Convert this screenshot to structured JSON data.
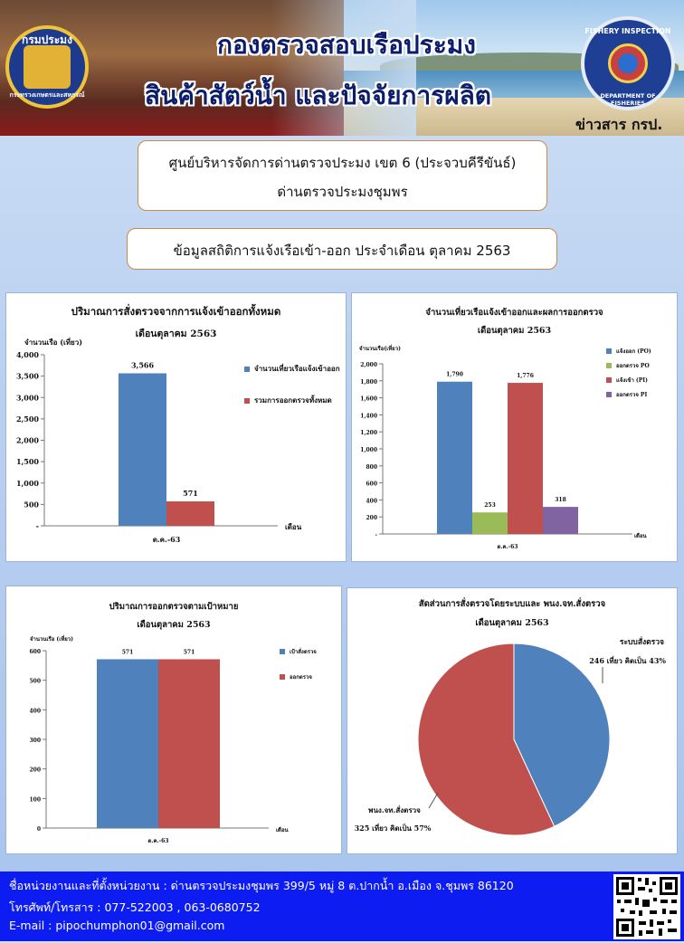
{
  "header": {
    "logo_left_text_top": "กรมประมง",
    "logo_left_text_bottom": "กระทรวงเกษตรและสหกรณ์",
    "title_line1": "กองตรวจสอบเรือประมง",
    "title_line2": "สินค้าสัตว์น้ำ และปัจจัยการผลิต",
    "logo_right_text_top": "FISHERY INSPECTION",
    "logo_right_text_bottom": "DEPARTMENT OF FISHERIES",
    "news_label": "ข่าวสาร กรป."
  },
  "office": {
    "line1": "ศูนย์บริหารจัดการด่านตรวจประมง เขต 6 (ประจวบคีรีขันธ์)",
    "line2": "ด่านตรวจประมงชุมพร"
  },
  "subtitle": "ข้อมูลสถิติการแจ้งเรือเข้า-ออก ประจำเดือน ตุลาคม 2563",
  "chart_data": [
    {
      "type": "bar",
      "title": "ปริมาณการสั่งตรวจจากการแจ้งเข้าออกทั้งหมด",
      "subtitle": "เดือนตุลาคม 2563",
      "ylabel": "จำนวนเรือ (เที่ยว)",
      "xlabel": "เดือน",
      "categories": [
        "ต.ค.-63"
      ],
      "series": [
        {
          "name": "จำนวนเที่ยวเรือแจ้งเข้าออก",
          "values": [
            3566
          ],
          "color": "#4f81bd"
        },
        {
          "name": "รวมการออกตรวจทั้งหมด",
          "values": [
            571
          ],
          "color": "#c0504d"
        }
      ],
      "ylim": [
        0,
        4000
      ],
      "yticks": [
        "-",
        "500",
        "1,000",
        "1,500",
        "2,000",
        "2,500",
        "3,000",
        "3,500",
        "4,000"
      ],
      "data_labels": [
        "3,566",
        "571"
      ],
      "legend": "right"
    },
    {
      "type": "bar",
      "title": "จำนวนเที่ยวเรือแจ้งเข้าออกและผลการออกตรวจ",
      "subtitle": "เดือนตุลาคม 2563",
      "ylabel": "จำนวนเรือ(เที่ยว)",
      "xlabel": "เดือน",
      "categories": [
        "ต.ค.-63"
      ],
      "series": [
        {
          "name": "แจ้งออก (PO)",
          "values": [
            1790
          ],
          "color": "#4f81bd"
        },
        {
          "name": "ออกตรวจ PO",
          "values": [
            253
          ],
          "color": "#9bbb59"
        },
        {
          "name": "แจ้งเข้า (PI)",
          "values": [
            1776
          ],
          "color": "#c0504d"
        },
        {
          "name": "ออกตรวจ PI",
          "values": [
            318
          ],
          "color": "#8064a2"
        }
      ],
      "ylim": [
        0,
        2000
      ],
      "yticks": [
        "-",
        "200",
        "400",
        "600",
        "800",
        "1,000",
        "1,200",
        "1,400",
        "1,600",
        "1,800",
        "2,000"
      ],
      "data_labels": [
        "1,790",
        "253",
        "1,776",
        "318"
      ],
      "legend": "right"
    },
    {
      "type": "bar",
      "title": "ปริมาณการออกตรวจตามเป้าหมาย",
      "subtitle": "เดือนตุลาคม 2563",
      "ylabel": "จำนวนเรือ (เที่ยว)",
      "xlabel": "เดือน",
      "categories": [
        "ต.ค.-63"
      ],
      "series": [
        {
          "name": "เป้าสั่งตรวจ",
          "values": [
            571
          ],
          "color": "#4f81bd"
        },
        {
          "name": "ออกตรวจ",
          "values": [
            571
          ],
          "color": "#c0504d"
        }
      ],
      "ylim": [
        0,
        600
      ],
      "yticks": [
        "0",
        "100",
        "200",
        "300",
        "400",
        "500",
        "600"
      ],
      "data_labels": [
        "571",
        "571"
      ],
      "legend": "right"
    },
    {
      "type": "pie",
      "title": "สัดส่วนการสั่งตรวจโดยระบบและ พนง.จท.สั่งตรวจ",
      "subtitle": "เดือนตุลาคม 2563",
      "slices": [
        {
          "label": "ระบบสั่งตรวจ",
          "value": 246,
          "detail": "246 เที่ยว คิดเป็น 43%",
          "color": "#4f81bd"
        },
        {
          "label": "พนง.จท.สั่งตรวจ",
          "value": 325,
          "detail": "325 เที่ยว คิดเป็น 57%",
          "color": "#c0504d"
        }
      ]
    }
  ],
  "footer": {
    "address": "ชื่อหน่วยงานและที่ตั้งหน่วยงาน : ด่านตรวจประมงชุมพร  399/5 หมู่ 8 ต.ปากน้ำ อ.เมือง จ.ชุมพร 86120",
    "phone": "โทรศัพท์/โทรสาร : 077-522003 , 063-0680752",
    "email": "E-mail : pipochumphon01@gmail.com"
  }
}
